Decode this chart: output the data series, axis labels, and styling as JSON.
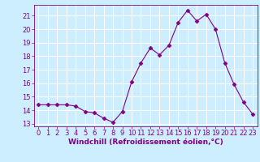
{
  "x": [
    0,
    1,
    2,
    3,
    4,
    5,
    6,
    7,
    8,
    9,
    10,
    11,
    12,
    13,
    14,
    15,
    16,
    17,
    18,
    19,
    20,
    21,
    22,
    23
  ],
  "y": [
    14.4,
    14.4,
    14.4,
    14.4,
    14.3,
    13.9,
    13.8,
    13.4,
    13.1,
    13.9,
    16.1,
    17.5,
    18.6,
    18.1,
    18.8,
    20.5,
    21.4,
    20.6,
    21.1,
    20.0,
    17.5,
    15.9,
    14.6,
    13.7
  ],
  "line_color": "#800080",
  "marker": "D",
  "marker_size": 2.5,
  "bg_color": "#cceeff",
  "grid_color": "#ffffff",
  "xlabel": "Windchill (Refroidissement éolien,°C)",
  "xlabel_fontsize": 6.5,
  "tick_fontsize": 6,
  "ylim": [
    12.8,
    21.8
  ],
  "xlim": [
    -0.5,
    23.5
  ],
  "yticks": [
    13,
    14,
    15,
    16,
    17,
    18,
    19,
    20,
    21
  ],
  "xticks": [
    0,
    1,
    2,
    3,
    4,
    5,
    6,
    7,
    8,
    9,
    10,
    11,
    12,
    13,
    14,
    15,
    16,
    17,
    18,
    19,
    20,
    21,
    22,
    23
  ],
  "figsize": [
    3.2,
    2.0
  ],
  "dpi": 100
}
